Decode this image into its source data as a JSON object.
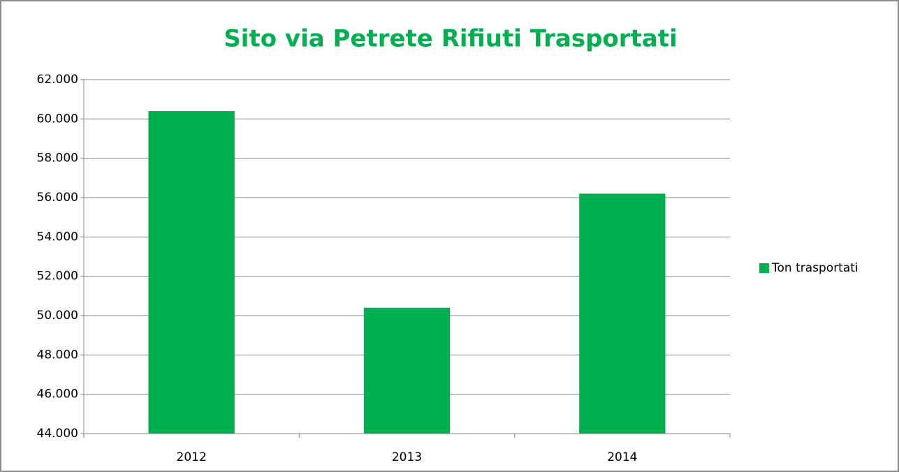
{
  "chart_data": {
    "type": "bar",
    "title": "Sito via Petrete Rifiuti Trasportati",
    "categories": [
      "2012",
      "2013",
      "2014"
    ],
    "series": [
      {
        "name": "Ton trasportati",
        "color": "#00b050",
        "values": [
          60400,
          50400,
          56200
        ]
      }
    ],
    "ylim": [
      44000,
      62000
    ],
    "yticks": [
      {
        "value": 44000,
        "label": "44.000"
      },
      {
        "value": 46000,
        "label": "46.000"
      },
      {
        "value": 48000,
        "label": "48.000"
      },
      {
        "value": 50000,
        "label": "50.000"
      },
      {
        "value": 52000,
        "label": "52.000"
      },
      {
        "value": 54000,
        "label": "54.000"
      },
      {
        "value": 56000,
        "label": "56.000"
      },
      {
        "value": 58000,
        "label": "58.000"
      },
      {
        "value": 60000,
        "label": "60.000"
      },
      {
        "value": 62000,
        "label": "62.000"
      }
    ],
    "grid": true,
    "legend": "right"
  }
}
